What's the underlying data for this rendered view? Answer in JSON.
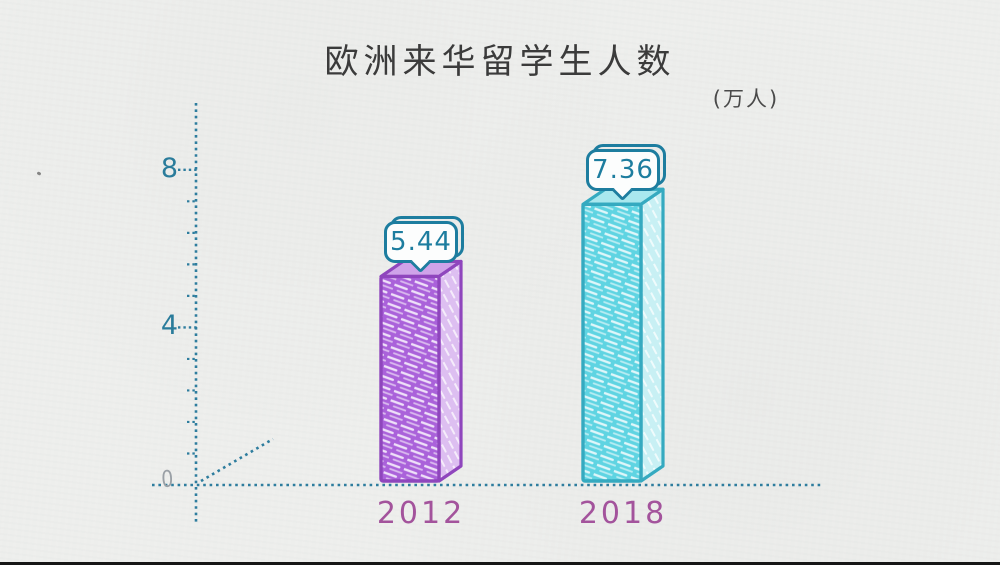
{
  "page": {
    "background_color": "#edeeec",
    "bottom_edge_color": "#161616"
  },
  "chart_data": {
    "type": "bar",
    "title": "欧洲来华留学生人数",
    "unit_label": "(万人)",
    "categories": [
      "2012",
      "2018"
    ],
    "values": [
      5.44,
      7.36
    ],
    "value_labels": [
      "5.44",
      "7.36"
    ],
    "yticks": [
      0,
      4,
      8
    ],
    "ylim": [
      0,
      10
    ],
    "grid": false,
    "legend": false,
    "style": "hand-drawn sketch: dotted teal axes, 3D hatched bars, value callout bubbles",
    "axis_color": "#2e7d9e",
    "tick_label_color": "#2a7c9b",
    "zero_label_color": "#9aa0a6",
    "title_color": "#3b3b3b",
    "unit_color": "#4a4a4a",
    "category_label_color": "#a3539c",
    "callout_color": "#1d7d9f",
    "bar_colors": [
      {
        "front": "#aa62da",
        "side": "#ddbff1",
        "top": "#cfa3e9",
        "outline": "#8f46bd"
      },
      {
        "front": "#5fd4e2",
        "side": "#c8f0f4",
        "top": "#a9e8ee",
        "outline": "#35aac0"
      }
    ]
  }
}
